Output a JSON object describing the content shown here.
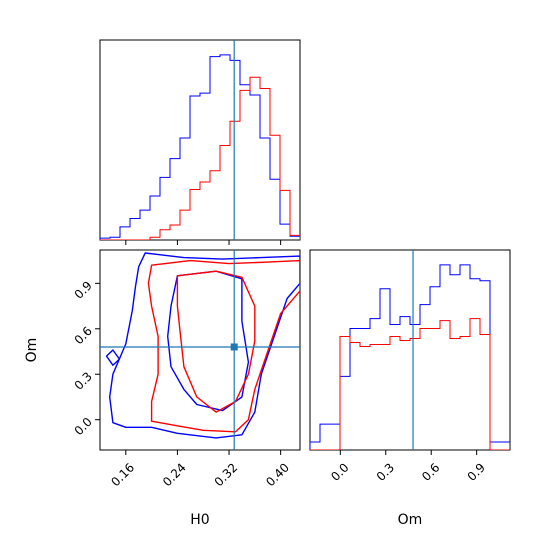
{
  "chart_data": [
    {
      "panel": "H0 marginal",
      "type": "histogram",
      "x_range": [
        0.12,
        0.43
      ],
      "x_ticks": [
        0.16,
        0.24,
        0.32,
        0.4
      ],
      "truth_line": 0.328,
      "bin_edges": [
        0.12,
        0.1355,
        0.151,
        0.1665,
        0.182,
        0.1975,
        0.213,
        0.2285,
        0.244,
        0.2595,
        0.275,
        0.2905,
        0.306,
        0.3215,
        0.337,
        0.3525,
        0.368,
        0.3835,
        0.399,
        0.4145,
        0.43
      ],
      "series": [
        {
          "color": "#0000ff",
          "counts": [
            2,
            3,
            14,
            23,
            32,
            47,
            67,
            87,
            109,
            154,
            157,
            196,
            198,
            192,
            166,
            155,
            109,
            65,
            17,
            4
          ]
        },
        {
          "color": "#ff0000",
          "counts": [
            0,
            0,
            0,
            0,
            0,
            3,
            11,
            16,
            32,
            54,
            62,
            74,
            101,
            127,
            160,
            174,
            162,
            112,
            53,
            5
          ]
        }
      ]
    },
    {
      "panel": "Om marginal",
      "type": "histogram",
      "x_range": [
        -0.2,
        1.12
      ],
      "x_ticks": [
        0.0,
        0.3,
        0.6,
        0.9
      ],
      "truth_line": 0.48,
      "bin_edges": [
        -0.2,
        -0.134,
        -0.068,
        -0.002,
        0.064,
        0.13,
        0.196,
        0.262,
        0.328,
        0.394,
        0.46,
        0.526,
        0.592,
        0.658,
        0.724,
        0.79,
        0.856,
        0.922,
        0.988,
        1.054,
        1.12
      ],
      "series": [
        {
          "color": "#0000ff",
          "counts": [
            0.04,
            0.13,
            0.13,
            0.37,
            0.61,
            0.61,
            0.66,
            0.81,
            0.63,
            0.67,
            0.63,
            0.73,
            0.82,
            0.93,
            0.88,
            0.93,
            0.86,
            0.85,
            0.04,
            0.04
          ]
        },
        {
          "color": "#ff0000",
          "counts": [
            0,
            0,
            0,
            0.57,
            0.54,
            0.52,
            0.53,
            0.53,
            0.57,
            0.55,
            0.56,
            0.61,
            0.61,
            0.65,
            0.56,
            0.57,
            0.66,
            0.58,
            0,
            0
          ]
        }
      ]
    },
    {
      "panel": "H0 vs Om joint",
      "type": "contour",
      "xlabel": "H0",
      "ylabel": "Om",
      "x_range": [
        0.12,
        0.43
      ],
      "y_range": [
        -0.2,
        1.12
      ],
      "x_ticks": [
        0.16,
        0.24,
        0.32,
        0.4
      ],
      "y_ticks": [
        0.0,
        0.3,
        0.6,
        0.9
      ],
      "truth_point": [
        0.328,
        0.48
      ],
      "series": [
        {
          "color": "#0000ff",
          "contours": [
            [
              [
                0.19,
                1.1
              ],
              [
                0.25,
                1.07
              ],
              [
                0.31,
                1.06
              ],
              [
                0.37,
                1.07
              ],
              [
                0.43,
                1.08
              ],
              [
                0.43,
                0.9
              ],
              [
                0.41,
                0.8
              ],
              [
                0.39,
                0.55
              ],
              [
                0.37,
                0.3
              ],
              [
                0.36,
                0.05
              ],
              [
                0.34,
                -0.1
              ],
              [
                0.3,
                -0.12
              ],
              [
                0.24,
                -0.09
              ],
              [
                0.2,
                -0.05
              ],
              [
                0.16,
                -0.05
              ],
              [
                0.14,
                -0.02
              ],
              [
                0.135,
                0.15
              ],
              [
                0.14,
                0.3
              ],
              [
                0.16,
                0.5
              ],
              [
                0.17,
                0.72
              ],
              [
                0.175,
                0.88
              ],
              [
                0.18,
                1.01
              ],
              [
                0.19,
                1.1
              ]
            ],
            [
              [
                0.24,
                0.95
              ],
              [
                0.3,
                0.98
              ],
              [
                0.34,
                0.93
              ],
              [
                0.34,
                0.65
              ],
              [
                0.35,
                0.38
              ],
              [
                0.34,
                0.15
              ],
              [
                0.31,
                0.06
              ],
              [
                0.27,
                0.1
              ],
              [
                0.25,
                0.2
              ],
              [
                0.23,
                0.35
              ],
              [
                0.225,
                0.55
              ],
              [
                0.23,
                0.75
              ],
              [
                0.24,
                0.95
              ]
            ],
            [
              [
                0.13,
                0.42
              ],
              [
                0.14,
                0.36
              ],
              [
                0.15,
                0.4
              ],
              [
                0.14,
                0.46
              ],
              [
                0.13,
                0.42
              ]
            ]
          ]
        },
        {
          "color": "#ff0000",
          "contours": [
            [
              [
                0.2,
                1.02
              ],
              [
                0.26,
                1.05
              ],
              [
                0.32,
                1.03
              ],
              [
                0.38,
                1.04
              ],
              [
                0.43,
                1.05
              ],
              [
                0.43,
                0.85
              ],
              [
                0.4,
                0.7
              ],
              [
                0.38,
                0.45
              ],
              [
                0.36,
                0.2
              ],
              [
                0.35,
                0.0
              ],
              [
                0.33,
                -0.08
              ],
              [
                0.28,
                -0.07
              ],
              [
                0.24,
                -0.04
              ],
              [
                0.2,
                -0.01
              ],
              [
                0.2,
                0.12
              ],
              [
                0.21,
                0.3
              ],
              [
                0.21,
                0.55
              ],
              [
                0.2,
                0.75
              ],
              [
                0.195,
                0.9
              ],
              [
                0.2,
                1.02
              ]
            ],
            [
              [
                0.24,
                0.95
              ],
              [
                0.3,
                0.98
              ],
              [
                0.34,
                0.94
              ],
              [
                0.36,
                0.75
              ],
              [
                0.36,
                0.52
              ],
              [
                0.35,
                0.3
              ],
              [
                0.33,
                0.12
              ],
              [
                0.3,
                0.05
              ],
              [
                0.27,
                0.15
              ],
              [
                0.25,
                0.35
              ],
              [
                0.245,
                0.55
              ],
              [
                0.24,
                0.75
              ],
              [
                0.24,
                0.95
              ]
            ]
          ]
        }
      ]
    }
  ]
}
